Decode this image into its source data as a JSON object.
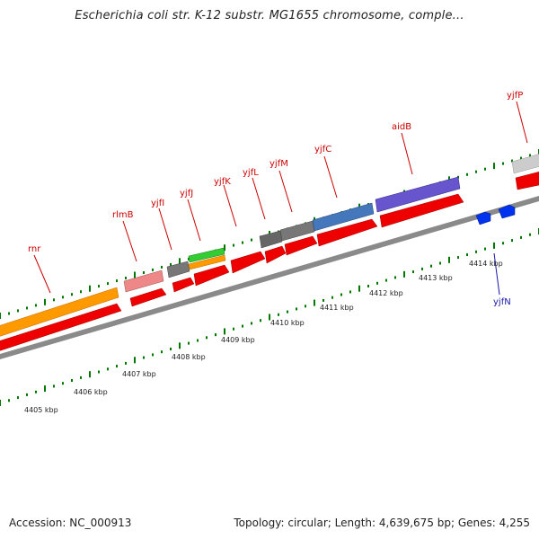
{
  "title": "Escherichia coli str. K-12 substr. MG1655 chromosome, comple...",
  "footer": {
    "accession": "Accession: NC_000913",
    "stats": "Topology: circular; Length: 4,639,675 bp; Genes: 4,255"
  },
  "colors": {
    "cds": "#ee0000",
    "gene_orange": "#ff9900",
    "gene_pink": "#ee8888",
    "gene_gray": "#777777",
    "gene_green": "#33cc33",
    "gene_steelblue": "#4477bb",
    "gene_purple": "#6655cc",
    "gene_lightgray": "#cccccc",
    "reverse": "#0033ee",
    "tick": "#007700",
    "backbone": "#888888"
  },
  "chart_data": {
    "type": "linear-genome-map",
    "kbp_ticks": [
      "4405 kbp",
      "4406 kbp",
      "4407 kbp",
      "4408 kbp",
      "4409 kbp",
      "4410 kbp",
      "4411 kbp",
      "4412 kbp",
      "4413 kbp",
      "4414 kbp"
    ],
    "forward_labels": [
      "rnr",
      "rlmB",
      "yjfI",
      "yjfJ",
      "yjfK",
      "yjfL",
      "yjfM",
      "yjfC",
      "aidB",
      "yjfP"
    ],
    "reverse_labels": [
      "yjfN"
    ]
  }
}
